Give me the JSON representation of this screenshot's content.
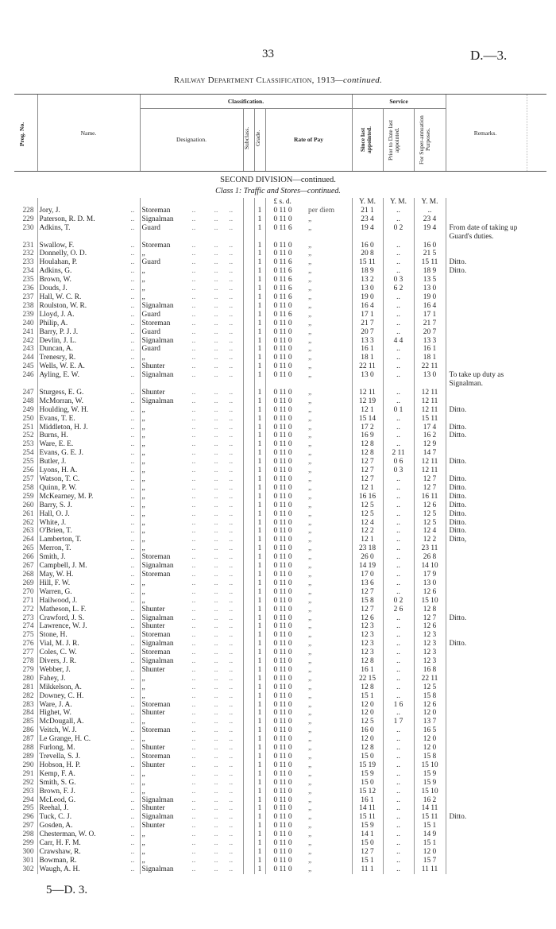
{
  "page": {
    "number": "33",
    "doc_ref": "D.—3.",
    "title": "Railway Department Classification, 1913",
    "title_suffix": "—continued."
  },
  "header": {
    "prog_no": "Prog. No.",
    "name": "Name.",
    "classification": "Classification.",
    "designation": "Designation.",
    "subclass": "Subclass.",
    "grade": "Grade.",
    "rate_of_pay": "Rate of Pay",
    "service": "Service",
    "since_last": "Since last appointed.",
    "prior_to_date": "Prior to Date last appointed.",
    "for_super": "For Super-annuation Purposes.",
    "remarks": "Remarks."
  },
  "section": {
    "division": "SECOND DIVISION—continued.",
    "class_label": "Class 1: Traffic and Stores—continued."
  },
  "units": {
    "money": "£  s.  d.",
    "ym": "Y.  M."
  },
  "rows": [
    [
      "228",
      "Jory, J.",
      "Storeman",
      "1",
      "0 11 0",
      "per diem",
      "21 1",
      "..",
      "..",
      ""
    ],
    [
      "229",
      "Paterson, R. D. M.",
      "Signalman",
      "1",
      "0 11 0",
      "„",
      "23 4",
      "..",
      "23 4",
      ""
    ],
    [
      "230",
      "Adkins, T.",
      "Guard",
      "1",
      "0 11 6",
      "„",
      "19 4",
      "0 2",
      "19 4",
      "From date of taking up Guard's duties."
    ],
    [
      "231",
      "Swallow, F.",
      "Storeman",
      "1",
      "0 11 0",
      "„",
      "16 0",
      "..",
      "16 0",
      ""
    ],
    [
      "232",
      "Donnelly, O. D.",
      "„",
      "1",
      "0 11 0",
      "„",
      "20 8",
      "..",
      "21 5",
      ""
    ],
    [
      "233",
      "Houlahan, P.",
      "Guard",
      "1",
      "0 11 6",
      "„",
      "15 11",
      "..",
      "15 11",
      "Ditto."
    ],
    [
      "234",
      "Adkins, G.",
      "„",
      "1",
      "0 11 6",
      "„",
      "18 9",
      "..",
      "18 9",
      "Ditto."
    ],
    [
      "235",
      "Brown, W.",
      "„",
      "1",
      "0 11 6",
      "„",
      "13 2",
      "0 3",
      "13 5",
      ""
    ],
    [
      "236",
      "Douds, J.",
      "„",
      "1",
      "0 11 6",
      "„",
      "13 0",
      "6 2",
      "13 0",
      ""
    ],
    [
      "237",
      "Hall, W. C. R.",
      "„",
      "1",
      "0 11 6",
      "„",
      "19 0",
      "..",
      "19 0",
      ""
    ],
    [
      "238",
      "Roulston, W. R.",
      "Signalman",
      "1",
      "0 11 0",
      "„",
      "16 4",
      "..",
      "16 4",
      ""
    ],
    [
      "239",
      "Lloyd, J. A.",
      "Guard",
      "1",
      "0 11 6",
      "„",
      "17 1",
      "..",
      "17 1",
      ""
    ],
    [
      "240",
      "Philip, A.",
      "Storeman",
      "1",
      "0 11 0",
      "„",
      "21 7",
      "..",
      "21 7",
      ""
    ],
    [
      "241",
      "Barry, P. J. J.",
      "Guard",
      "1",
      "0 11 0",
      "„",
      "20 7",
      "..",
      "20 7",
      ""
    ],
    [
      "242",
      "Devlin, J. L.",
      "Signalman",
      "1",
      "0 11 0",
      "„",
      "13 3",
      "4 4",
      "13 3",
      ""
    ],
    [
      "243",
      "Duncan, A.",
      "Guard",
      "1",
      "0 11 0",
      "„",
      "16 1",
      "..",
      "16 1",
      ""
    ],
    [
      "244",
      "Trenesry, R.",
      "„",
      "1",
      "0 11 0",
      "„",
      "18 1",
      "..",
      "18 1",
      ""
    ],
    [
      "245",
      "Wells, W. E. A.",
      "Shunter",
      "1",
      "0 11 0",
      "„",
      "22 11",
      "..",
      "22 11",
      ""
    ],
    [
      "246",
      "Ayling, E. W.",
      "Signalman",
      "1",
      "0 11 0",
      "„",
      "13 0",
      "..",
      "13 0",
      "To take up duty as Signalman."
    ],
    [
      "247",
      "Sturgess, E. G.",
      "Shunter",
      "1",
      "0 11 0",
      "„",
      "12 11",
      "..",
      "12 11",
      ""
    ],
    [
      "248",
      "McMorran, W.",
      "Signalman",
      "1",
      "0 11 0",
      "„",
      "12 19",
      "..",
      "12 11",
      ""
    ],
    [
      "249",
      "Houlding, W. H.",
      "„",
      "1",
      "0 11 0",
      "„",
      "12 1",
      "0 1",
      "12 11",
      "Ditto."
    ],
    [
      "250",
      "Evans, T. E.",
      "„",
      "1",
      "0 11 0",
      "„",
      "15 14",
      "..",
      "15 11",
      ""
    ],
    [
      "251",
      "Middleton, H. J.",
      "„",
      "1",
      "0 11 0",
      "„",
      "17 2",
      "..",
      "17 4",
      "Ditto."
    ],
    [
      "252",
      "Burns, H.",
      "„",
      "1",
      "0 11 0",
      "„",
      "16 9",
      "..",
      "16 2",
      "Ditto."
    ],
    [
      "253",
      "Ware, E. E.",
      "„",
      "1",
      "0 11 0",
      "„",
      "12 8",
      "..",
      "12 9",
      ""
    ],
    [
      "254",
      "Evans, G. E. J.",
      "„",
      "1",
      "0 11 0",
      "„",
      "12 8",
      "2 11",
      "14 7",
      ""
    ],
    [
      "255",
      "Butler, J.",
      "„",
      "1",
      "0 11 0",
      "„",
      "12 7",
      "0 6",
      "12 11",
      "Ditto."
    ],
    [
      "256",
      "Lyons, H. A.",
      "„",
      "1",
      "0 11 0",
      "„",
      "12 7",
      "0 3",
      "12 11",
      ""
    ],
    [
      "257",
      "Watson, T. C.",
      "„",
      "1",
      "0 11 0",
      "„",
      "12 7",
      "..",
      "12 7",
      "Ditto."
    ],
    [
      "258",
      "Quinn, P. W.",
      "„",
      "1",
      "0 11 0",
      "„",
      "12 1",
      "..",
      "12 7",
      "Ditto."
    ],
    [
      "259",
      "McKearney, M. P.",
      "„",
      "1",
      "0 11 0",
      "„",
      "16 16",
      "..",
      "16 11",
      "Ditto."
    ],
    [
      "260",
      "Barry, S. J.",
      "„",
      "1",
      "0 11 0",
      "„",
      "12 5",
      "..",
      "12 6",
      "Ditto."
    ],
    [
      "261",
      "Hall, O. J.",
      "„",
      "1",
      "0 11 0",
      "„",
      "12 5",
      "..",
      "12 5",
      "Ditto."
    ],
    [
      "262",
      "White, J.",
      "„",
      "1",
      "0 11 0",
      "„",
      "12 4",
      "..",
      "12 5",
      "Ditto."
    ],
    [
      "263",
      "O'Brien, T.",
      "„",
      "1",
      "0 11 0",
      "„",
      "12 2",
      "..",
      "12 4",
      "Ditto."
    ],
    [
      "264",
      "Lamberton, T.",
      "„",
      "1",
      "0 11 0",
      "„",
      "12 1",
      "..",
      "12 2",
      "Ditto,"
    ],
    [
      "265",
      "Merron, T.",
      "„",
      "1",
      "0 11 0",
      "„",
      "23 18",
      "..",
      "23 11",
      ""
    ],
    [
      "266",
      "Smith, J.",
      "Storeman",
      "1",
      "0 11 0",
      "„",
      "26 0",
      "..",
      "26 8",
      ""
    ],
    [
      "267",
      "Campbell, J. M.",
      "Signalman",
      "1",
      "0 11 0",
      "„",
      "14 19",
      "..",
      "14 10",
      ""
    ],
    [
      "268",
      "May, W. H.",
      "Storeman",
      "1",
      "0 11 0",
      "„",
      "17 0",
      "..",
      "17 9",
      ""
    ],
    [
      "269",
      "Hill, F. W.",
      "„",
      "1",
      "0 11 0",
      "„",
      "13 6",
      "..",
      "13 0",
      ""
    ],
    [
      "270",
      "Warren, G.",
      "„",
      "1",
      "0 11 0",
      "„",
      "12 7",
      "..",
      "12 6",
      ""
    ],
    [
      "271",
      "Hailwood, J.",
      "„",
      "1",
      "0 11 0",
      "„",
      "15 8",
      "0 2",
      "15 10",
      ""
    ],
    [
      "272",
      "Matheson, L. F.",
      "Shunter",
      "1",
      "0 11 0",
      "„",
      "12 7",
      "2 6",
      "12 8",
      ""
    ],
    [
      "273",
      "Crawford, J. S.",
      "Signalman",
      "1",
      "0 11 0",
      "„",
      "12 6",
      "..",
      "12 7",
      "Ditto."
    ],
    [
      "274",
      "Lawrence, W. J.",
      "Shunter",
      "1",
      "0 11 0",
      "„",
      "12 3",
      "..",
      "12 6",
      ""
    ],
    [
      "275",
      "Stone, H.",
      "Storeman",
      "1",
      "0 11 0",
      "„",
      "12 3",
      "..",
      "12 3",
      ""
    ],
    [
      "276",
      "Vial, M. J. R.",
      "Signalman",
      "1",
      "0 11 0",
      "„",
      "12 3",
      "..",
      "12 3",
      "Ditto."
    ],
    [
      "277",
      "Coles, C. W.",
      "Storeman",
      "1",
      "0 11 0",
      "„",
      "12 3",
      "..",
      "12 3",
      ""
    ],
    [
      "278",
      "Divers, J. R.",
      "Signalman",
      "1",
      "0 11 0",
      "„",
      "12 8",
      "..",
      "12 3",
      ""
    ],
    [
      "279",
      "Webber, J.",
      "Shunter",
      "1",
      "0 11 0",
      "„",
      "16 1",
      "..",
      "16 8",
      ""
    ],
    [
      "280",
      "Fahey, J.",
      "„",
      "1",
      "0 11 0",
      "„",
      "22 15",
      "..",
      "22 11",
      ""
    ],
    [
      "281",
      "Mikkelson, A.",
      "„",
      "1",
      "0 11 0",
      "„",
      "12 8",
      "..",
      "12 5",
      ""
    ],
    [
      "282",
      "Downey, C. H.",
      "„",
      "1",
      "0 11 0",
      "„",
      "15 1",
      "..",
      "15 8",
      ""
    ],
    [
      "283",
      "Ware, J. A.",
      "Storeman",
      "1",
      "0 11 0",
      "„",
      "12 0",
      "1 6",
      "12 6",
      ""
    ],
    [
      "284",
      "Highet, W.",
      "Shunter",
      "1",
      "0 11 0",
      "„",
      "12 0",
      "..",
      "12 0",
      ""
    ],
    [
      "285",
      "McDougall, A.",
      "„",
      "1",
      "0 11 0",
      "„",
      "12 5",
      "1 7",
      "13 7",
      ""
    ],
    [
      "286",
      "Veitch, W. J.",
      "Storeman",
      "1",
      "0 11 0",
      "„",
      "16 0",
      "..",
      "16 5",
      ""
    ],
    [
      "287",
      "Le Grange, H. C.",
      "„",
      "1",
      "0 11 0",
      "„",
      "12 0",
      "..",
      "12 0",
      ""
    ],
    [
      "288",
      "Furlong, M.",
      "Shunter",
      "1",
      "0 11 0",
      "„",
      "12 8",
      "..",
      "12 0",
      ""
    ],
    [
      "289",
      "Trevella, S. J.",
      "Storeman",
      "1",
      "0 11 0",
      "„",
      "15 0",
      "..",
      "15 8",
      ""
    ],
    [
      "290",
      "Hobson, H. P.",
      "Shunter",
      "1",
      "0 11 0",
      "„",
      "15 19",
      "..",
      "15 10",
      ""
    ],
    [
      "291",
      "Kemp, F. A.",
      "„",
      "1",
      "0 11 0",
      "„",
      "15 9",
      "..",
      "15 9",
      ""
    ],
    [
      "292",
      "Smith, S. G.",
      "„",
      "1",
      "0 11 0",
      "„",
      "15 0",
      "..",
      "15 9",
      ""
    ],
    [
      "293",
      "Brown, F. J.",
      "„",
      "1",
      "0 11 0",
      "„",
      "15 12",
      "..",
      "15 10",
      ""
    ],
    [
      "294",
      "McLeod, G.",
      "Signalman",
      "1",
      "0 11 0",
      "„",
      "16 1",
      "..",
      "16 2",
      ""
    ],
    [
      "295",
      "Reehal, J.",
      "Shunter",
      "1",
      "0 11 0",
      "„",
      "14 11",
      "..",
      "14 11",
      ""
    ],
    [
      "296",
      "Tuck, C. J.",
      "Signalman",
      "1",
      "0 11 0",
      "„",
      "15 11",
      "..",
      "15 11",
      "Ditto."
    ],
    [
      "297",
      "Gosden, A.",
      "Shunter",
      "1",
      "0 11 0",
      "„",
      "15 9",
      "..",
      "15 1",
      ""
    ],
    [
      "298",
      "Chesterman, W. O.",
      "„",
      "1",
      "0 11 0",
      "„",
      "14 1",
      "..",
      "14 9",
      ""
    ],
    [
      "299",
      "Carr, H. F. M.",
      "„",
      "1",
      "0 11 0",
      "„",
      "15 0",
      "..",
      "15 1",
      ""
    ],
    [
      "300",
      "Crawshaw, R.",
      "„",
      "1",
      "0 11 0",
      "„",
      "12 7",
      "..",
      "12 0",
      ""
    ],
    [
      "301",
      "Bowman, R.",
      "„",
      "1",
      "0 11 0",
      "„",
      "15 1",
      "..",
      "15 7",
      ""
    ],
    [
      "302",
      "Waugh, A. H.",
      "Signalman",
      "1",
      "0 11 0",
      "„",
      "11 1",
      "..",
      "11 11",
      ""
    ]
  ],
  "footer": "5—D. 3."
}
